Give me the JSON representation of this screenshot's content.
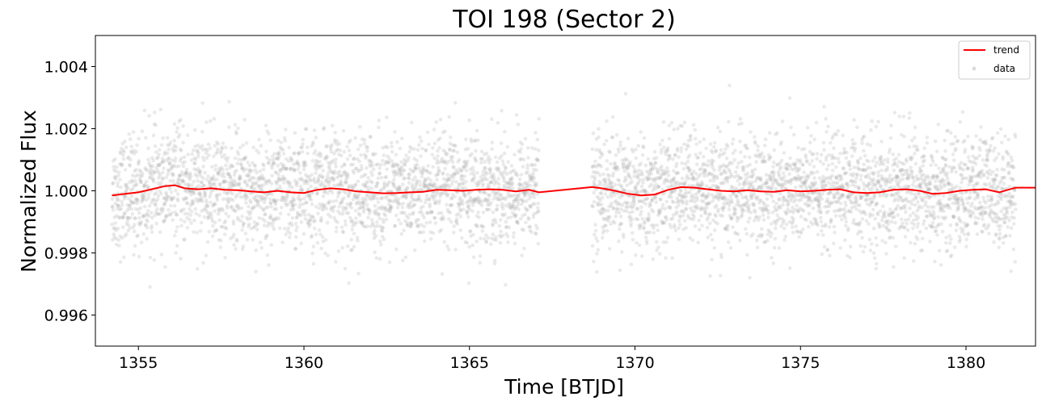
{
  "chart_data": {
    "type": "scatter",
    "title": "TOI 198 (Sector 2)",
    "xlabel": "Time [BTJD]",
    "ylabel": "Normalized Flux",
    "xlim": [
      1353.7,
      1382.1
    ],
    "ylim": [
      0.995,
      1.005
    ],
    "x_ticks": [
      {
        "value": 1355,
        "label": "1355"
      },
      {
        "value": 1360,
        "label": "1360"
      },
      {
        "value": 1365,
        "label": "1365"
      },
      {
        "value": 1370,
        "label": "1370"
      },
      {
        "value": 1375,
        "label": "1375"
      },
      {
        "value": 1380,
        "label": "1380"
      }
    ],
    "y_ticks": [
      {
        "value": 0.996,
        "label": "0.996"
      },
      {
        "value": 0.998,
        "label": "0.998"
      },
      {
        "value": 1.0,
        "label": "1.000"
      },
      {
        "value": 1.002,
        "label": "1.002"
      },
      {
        "value": 1.004,
        "label": "1.004"
      }
    ],
    "grid": false,
    "legend": {
      "position": "top-right",
      "entries": [
        {
          "label": "trend",
          "color": "#ff0000",
          "style": "line"
        },
        {
          "label": "data",
          "color": "#aaaaaa",
          "style": "marker"
        }
      ]
    },
    "series": [
      {
        "name": "trend",
        "kind": "line",
        "color": "#ff0000",
        "x": [
          1354.2,
          1354.6,
          1355.0,
          1355.4,
          1355.8,
          1356.1,
          1356.4,
          1356.8,
          1357.2,
          1357.6,
          1358.0,
          1358.4,
          1358.8,
          1359.2,
          1359.6,
          1360.0,
          1360.4,
          1360.8,
          1361.2,
          1361.6,
          1362.0,
          1362.4,
          1362.8,
          1363.2,
          1363.6,
          1364.0,
          1364.4,
          1364.8,
          1365.2,
          1365.6,
          1366.0,
          1366.4,
          1366.8,
          1367.1,
          1368.7,
          1369.0,
          1369.4,
          1369.8,
          1370.2,
          1370.6,
          1371.0,
          1371.4,
          1371.8,
          1372.2,
          1372.6,
          1373.0,
          1373.4,
          1373.8,
          1374.2,
          1374.6,
          1375.0,
          1375.4,
          1375.8,
          1376.2,
          1376.6,
          1377.0,
          1377.4,
          1377.8,
          1378.2,
          1378.6,
          1379.0,
          1379.4,
          1379.8,
          1380.2,
          1380.6,
          1381.0,
          1381.5,
          1382.1
        ],
        "y": [
          0.99985,
          0.9999,
          0.99995,
          1.00005,
          1.00015,
          1.00018,
          1.00008,
          1.00005,
          1.00008,
          1.00003,
          1.00002,
          0.99998,
          0.99995,
          1.0,
          0.99995,
          0.99993,
          1.00003,
          1.00008,
          1.00005,
          0.99998,
          0.99995,
          0.99992,
          0.99993,
          0.99995,
          0.99997,
          1.00003,
          1.00002,
          1.0,
          1.00003,
          1.00005,
          1.00003,
          0.99998,
          1.00003,
          0.99995,
          1.00012,
          1.00008,
          1.0,
          0.9999,
          0.99985,
          0.99988,
          1.00003,
          1.00012,
          1.0001,
          1.00005,
          1.0,
          0.99998,
          1.00002,
          0.99998,
          0.99997,
          1.00002,
          0.99998,
          1.0,
          1.00003,
          1.00005,
          0.99995,
          0.99993,
          0.99995,
          1.00003,
          1.00005,
          1.0,
          0.9999,
          0.99993,
          1.0,
          1.00003,
          1.00005,
          0.99995,
          1.0001,
          1.0001
        ]
      },
      {
        "name": "data",
        "kind": "scatter",
        "color": "#aaaaaa",
        "opacity": 0.25,
        "segments": [
          {
            "x_start": 1354.2,
            "x_end": 1367.1
          },
          {
            "x_start": 1368.7,
            "x_end": 1381.5
          }
        ],
        "scatter_sigma": 0.0009,
        "approximate_points": 5200
      }
    ]
  }
}
